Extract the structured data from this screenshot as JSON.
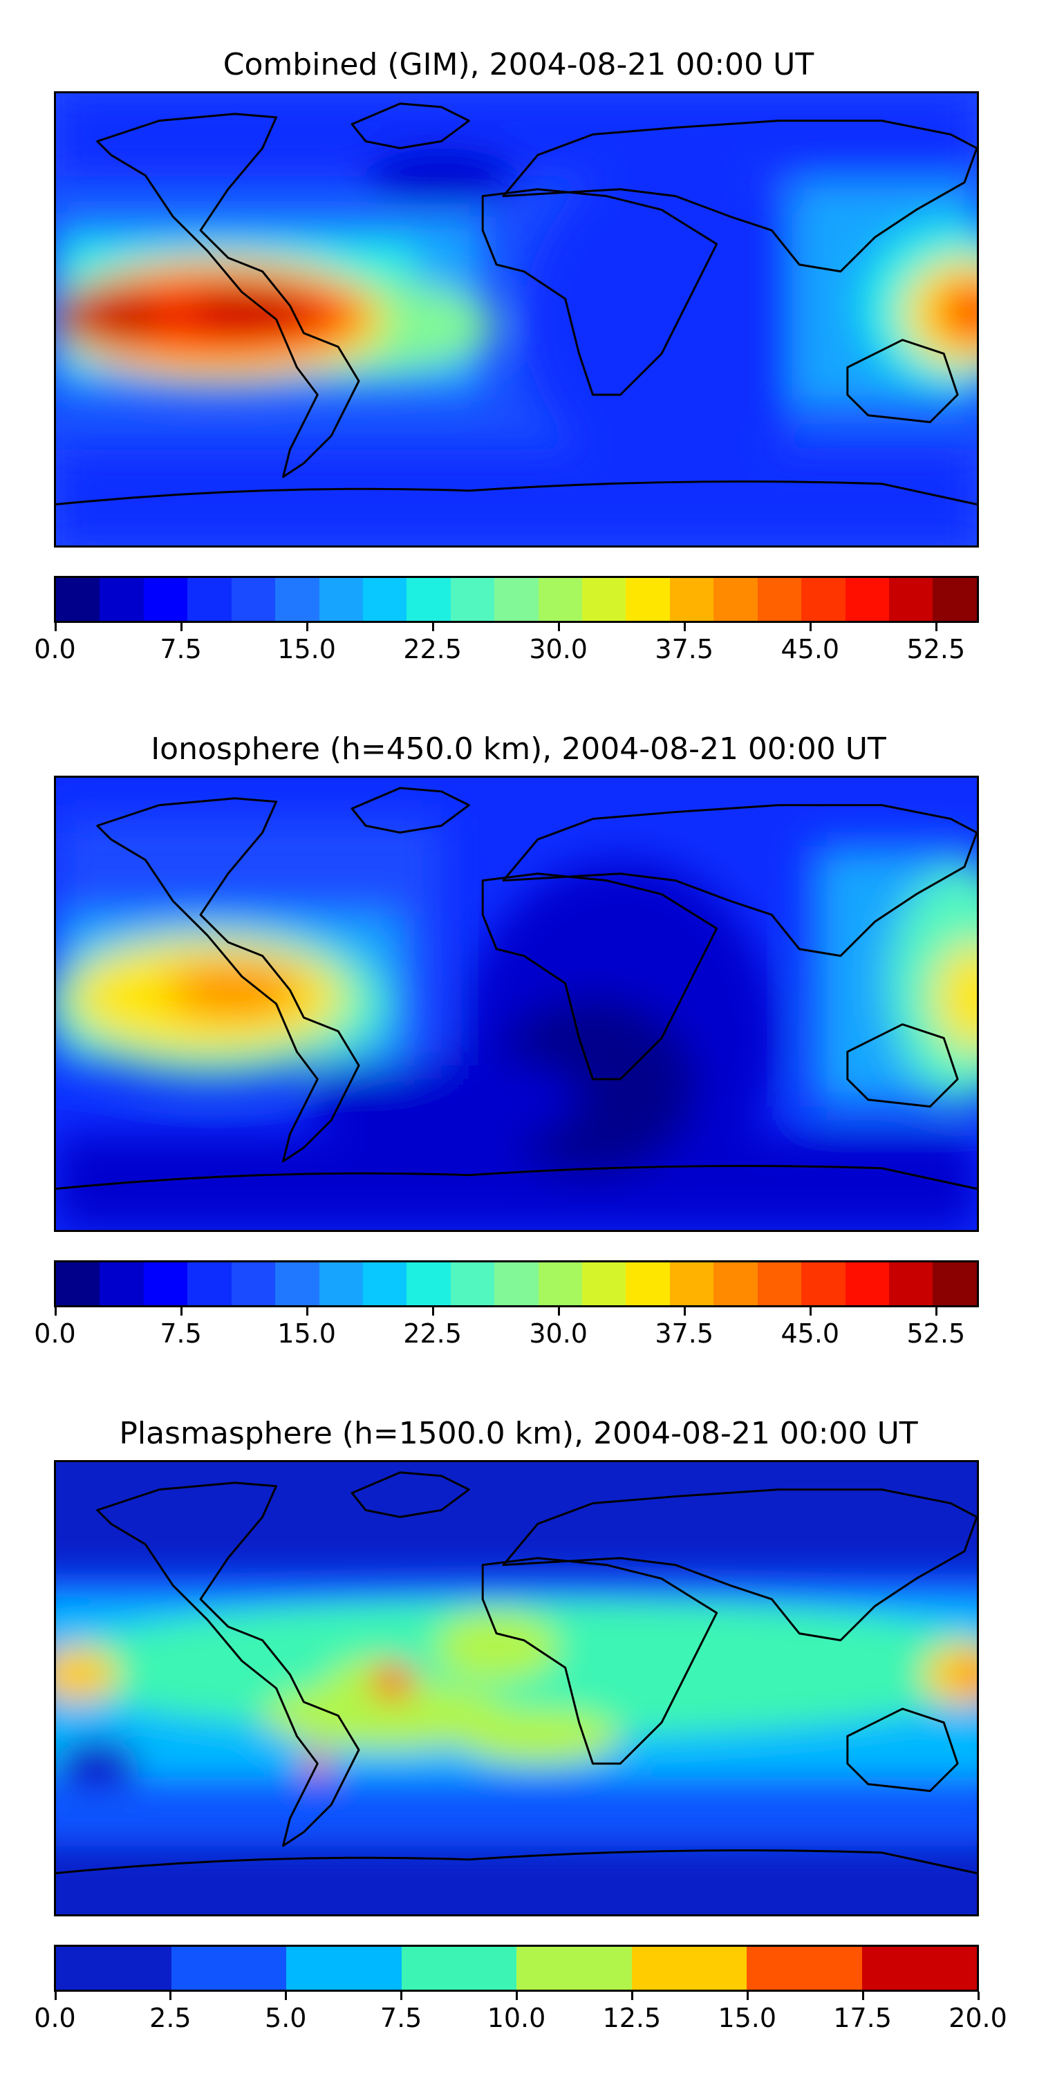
{
  "panels": [
    {
      "title": "Combined (GIM), 2004-08-21 00:00 UT",
      "colorbar": {
        "min": 0.0,
        "max": 55.0,
        "ticks": [
          "0.0",
          "7.5",
          "15.0",
          "22.5",
          "30.0",
          "37.5",
          "45.0",
          "52.5"
        ],
        "tick_values": [
          0,
          7.5,
          15,
          22.5,
          30,
          37.5,
          45,
          52.5
        ],
        "colors": [
          "#00008b",
          "#0000cd",
          "#0000ff",
          "#0d2dff",
          "#1a4bff",
          "#1f78ff",
          "#16a4ff",
          "#08c8ff",
          "#1df0e1",
          "#52f7c0",
          "#82f896",
          "#a6f85e",
          "#d5f52a",
          "#ffe600",
          "#ffb300",
          "#ff8a00",
          "#ff6000",
          "#ff3500",
          "#ff0f00",
          "#c80000",
          "#8b0000"
        ]
      }
    },
    {
      "title": "Ionosphere  (h=450.0 km), 2004-08-21 00:00 UT",
      "colorbar": {
        "min": 0.0,
        "max": 55.0,
        "ticks": [
          "0.0",
          "7.5",
          "15.0",
          "22.5",
          "30.0",
          "37.5",
          "45.0",
          "52.5"
        ],
        "tick_values": [
          0,
          7.5,
          15,
          22.5,
          30,
          37.5,
          45,
          52.5
        ],
        "colors": [
          "#00008b",
          "#0000cd",
          "#0000ff",
          "#0d2dff",
          "#1a4bff",
          "#1f78ff",
          "#16a4ff",
          "#08c8ff",
          "#1df0e1",
          "#52f7c0",
          "#82f896",
          "#a6f85e",
          "#d5f52a",
          "#ffe600",
          "#ffb300",
          "#ff8a00",
          "#ff6000",
          "#ff3500",
          "#ff0f00",
          "#c80000",
          "#8b0000"
        ]
      }
    },
    {
      "title": "Plasmasphere (h=1500.0 km), 2004-08-21 00:00 UT",
      "colorbar": {
        "min": 0.0,
        "max": 20.0,
        "ticks": [
          "0.0",
          "2.5",
          "5.0",
          "7.5",
          "10.0",
          "12.5",
          "15.0",
          "17.5",
          "20.0"
        ],
        "tick_values": [
          0,
          2.5,
          5,
          7.5,
          10,
          12.5,
          15,
          17.5,
          20
        ],
        "colors": [
          "#0a1fc8",
          "#1155ff",
          "#00b8ff",
          "#3cf5b4",
          "#b2f54a",
          "#ffcc00",
          "#ff5500",
          "#cc0000"
        ]
      }
    }
  ]
}
